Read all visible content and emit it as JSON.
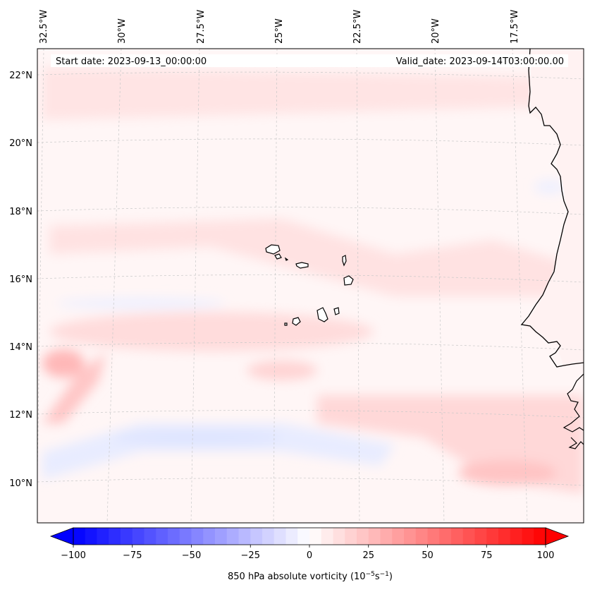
{
  "map": {
    "header": {
      "start_date": "Start date: 2023-09-13_00:00:00",
      "valid_date": "Valid_date: 2023-09-14T03:00:00.00"
    },
    "lon_labels": [
      "32.5°W",
      "30°W",
      "27.5°W",
      "25°W",
      "22.5°W",
      "20°W",
      "17.5°W"
    ],
    "lat_labels": [
      "22°N",
      "20°N",
      "18°N",
      "16°N",
      "14°N",
      "12°N",
      "10°N"
    ],
    "field": "850 hPa absolute vorticity",
    "colors": {
      "negative": "#0000ff",
      "zero": "#ffffff",
      "positive": "#ff0000",
      "coast": "#000000",
      "grid": "#c8c8c8"
    }
  },
  "colorbar": {
    "min": -100,
    "max": 100,
    "tick_labels": [
      "−100",
      "−75",
      "−50",
      "−25",
      "0",
      "25",
      "50",
      "75",
      "100"
    ],
    "label": "850 hPa absolute vorticity (10",
    "unit_exp1": "−5",
    "unit_mid": "s",
    "unit_exp2": "−1",
    "unit_close": ")"
  }
}
